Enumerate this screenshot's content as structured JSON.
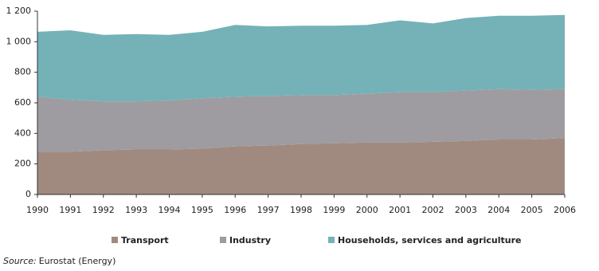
{
  "chart_data": {
    "type": "stacked_area",
    "x": [
      1990,
      1991,
      1992,
      1993,
      1994,
      1995,
      1996,
      1997,
      1998,
      1999,
      2000,
      2001,
      2002,
      2003,
      2004,
      2005,
      2006
    ],
    "series": [
      {
        "name": "Transport",
        "color": "#a08a80",
        "values": [
          280,
          280,
          290,
          295,
          295,
          300,
          315,
          320,
          330,
          335,
          340,
          340,
          345,
          350,
          360,
          360,
          370
        ]
      },
      {
        "name": "Industry",
        "color": "#9e9ca0",
        "values": [
          360,
          340,
          320,
          315,
          320,
          330,
          325,
          325,
          320,
          315,
          320,
          330,
          325,
          330,
          330,
          325,
          320
        ]
      },
      {
        "name": "Households, services and agriculture",
        "color": "#74b2b8",
        "values": [
          425,
          455,
          435,
          440,
          430,
          435,
          470,
          455,
          455,
          455,
          450,
          470,
          450,
          475,
          480,
          485,
          485
        ]
      }
    ],
    "xlim": [
      1990,
      2006
    ],
    "xticks": [
      1990,
      1991,
      1992,
      1993,
      1994,
      1995,
      1996,
      1997,
      1998,
      1999,
      2000,
      2001,
      2002,
      2003,
      2004,
      2005,
      2006
    ],
    "ylim": [
      0,
      1200
    ],
    "yticks": [
      0,
      200,
      400,
      600,
      800,
      {
        "value": 1000,
        "label": "1 000"
      },
      {
        "value": 1200,
        "label": "1 200"
      }
    ],
    "legend": "bottom",
    "source_label": "Source:",
    "source": "Eurostat (Energy)"
  }
}
